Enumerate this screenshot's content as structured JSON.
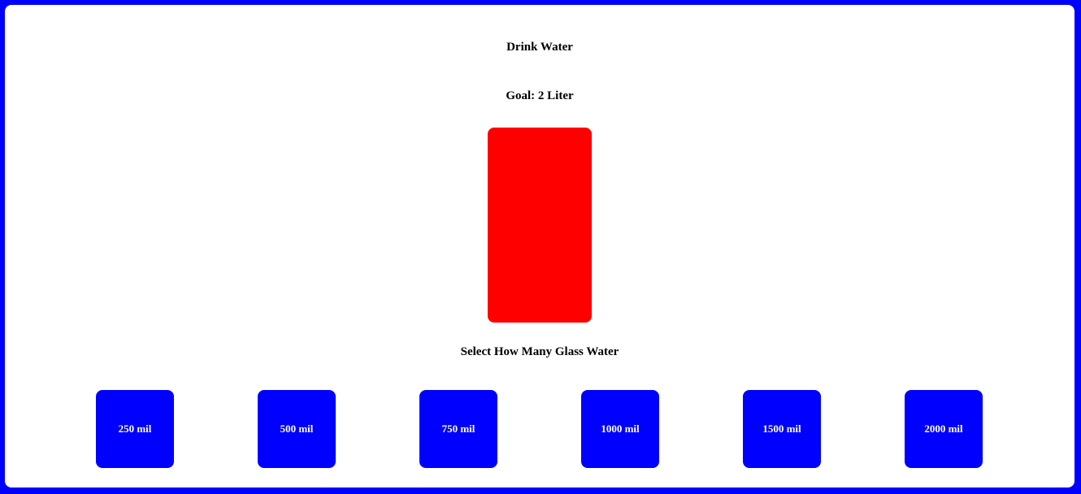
{
  "app": {
    "title": "Drink Water",
    "goal": "Goal: 2 Liter"
  },
  "glass": {
    "filled_fraction": 0,
    "empty_color": "#ff0000",
    "fill_color": "#0000ff"
  },
  "selection": {
    "title": "Select How Many Glass Water",
    "options": [
      "250 mil",
      "500 mil",
      "750 mil",
      "1000 mil",
      "1500 mil",
      "2000 mil"
    ]
  },
  "colors": {
    "frame": "#0000ff",
    "card": "#ffffff",
    "button": "#0000ff",
    "button_text": "#ffffff"
  }
}
